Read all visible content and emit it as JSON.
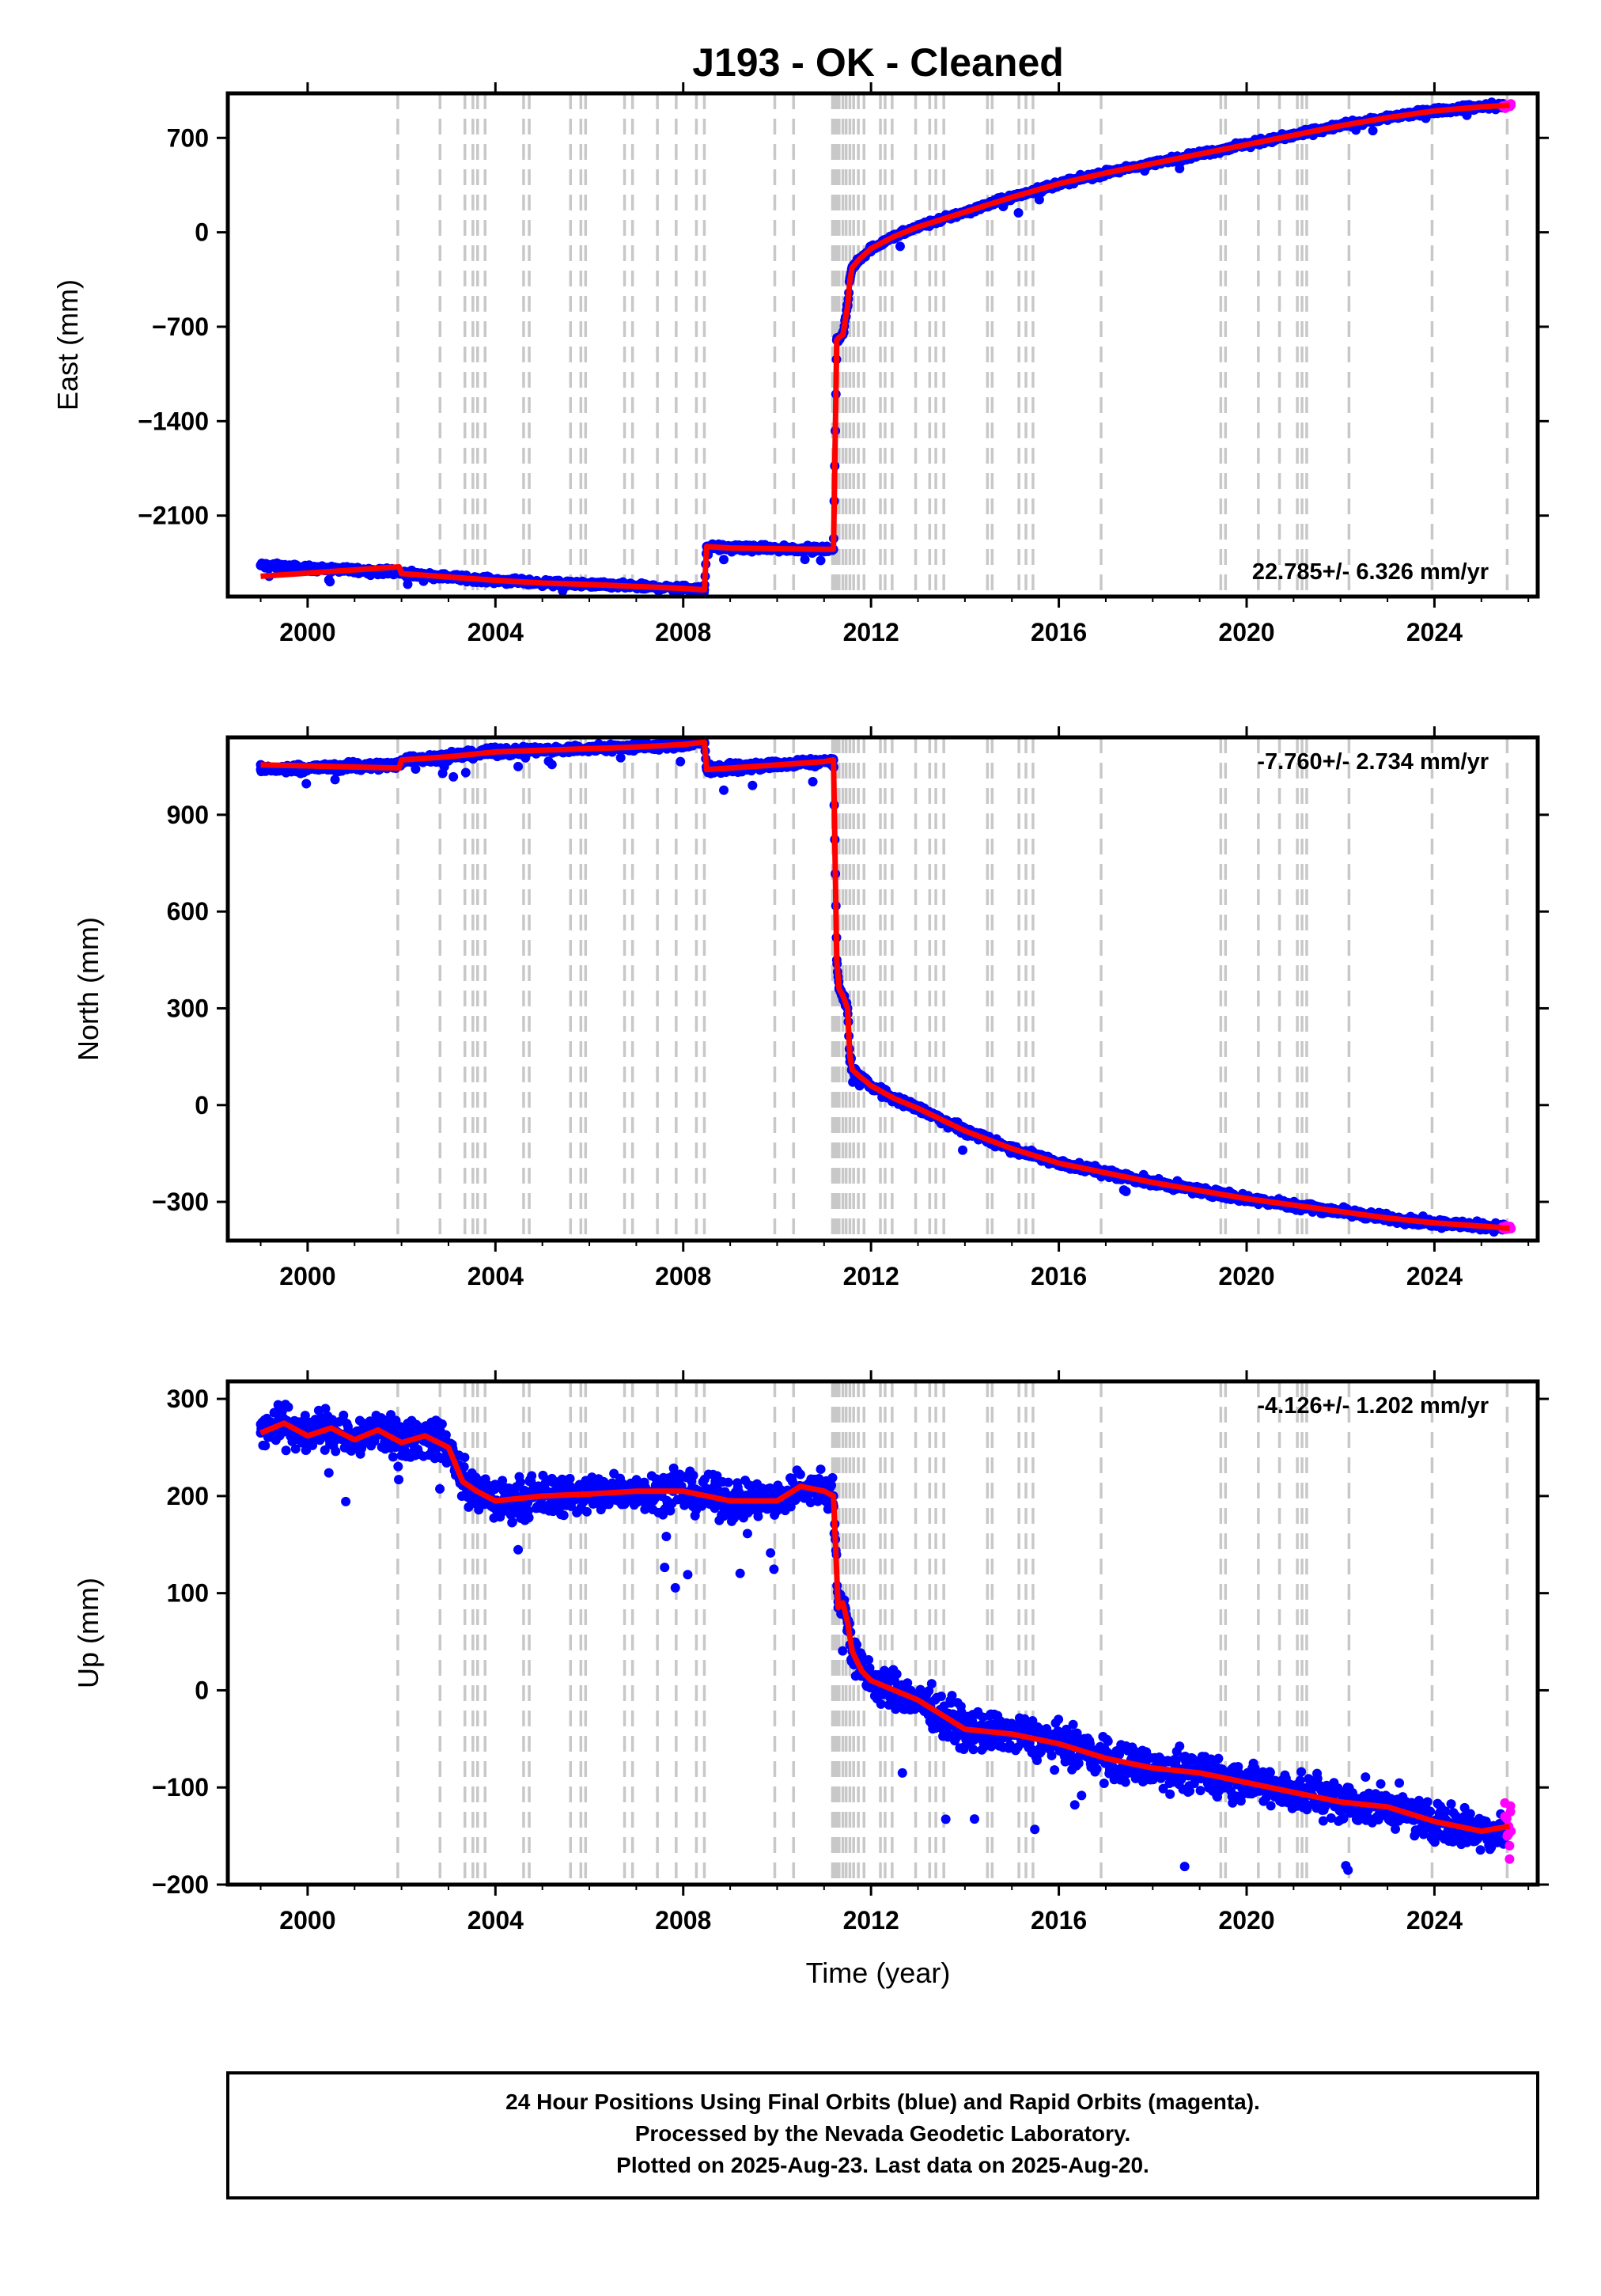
{
  "title": "J193  - OK - Cleaned",
  "colors": {
    "final_orbits": "#0000ff",
    "rapid_orbits": "#ff00ff",
    "model": "#ff0000",
    "event_lines": "#c8c8c8",
    "frame": "#000000"
  },
  "xaxis": {
    "label": "Time (year)",
    "range": [
      1998.3,
      2026.2
    ],
    "ticks": [
      2000,
      2004,
      2008,
      2012,
      2016,
      2020,
      2024
    ],
    "tick_labels": [
      "2000",
      "2004",
      "2008",
      "2012",
      "2016",
      "2020",
      "2024"
    ]
  },
  "event_lines_years": [
    2001.92,
    2002.82,
    2003.35,
    2003.52,
    2003.62,
    2003.78,
    2004.6,
    2004.72,
    2005.6,
    2005.82,
    2005.92,
    2006.75,
    2006.92,
    2007.45,
    2007.85,
    2008.28,
    2008.45,
    2009.95,
    2010.35,
    2011.18,
    2011.22,
    2011.27,
    2011.32,
    2011.4,
    2011.47,
    2011.55,
    2011.63,
    2011.73,
    2011.85,
    2012.2,
    2012.3,
    2012.45,
    2012.95,
    2013.25,
    2013.38,
    2013.55,
    2014.48,
    2014.58,
    2015.15,
    2015.3,
    2015.45,
    2016.9,
    2019.45,
    2019.55,
    2020.25,
    2020.7,
    2021.08,
    2021.18,
    2021.28,
    2022.18,
    2023.95,
    2025.55
  ],
  "footer": {
    "line1": "24 Hour Positions Using Final Orbits (blue) and Rapid Orbits (magenta).",
    "line2": "Processed by the Nevada Geodetic Laboratory.",
    "line3": "Plotted on 2025-Aug-23. Last data on 2025-Aug-20."
  },
  "chart_data": [
    {
      "type": "scatter",
      "panel": "east",
      "ylabel": "East (mm)",
      "ylim": [
        -2700,
        1030
      ],
      "yticks": [
        700,
        0,
        -700,
        -1400,
        -2100
      ],
      "ytick_labels": [
        "700",
        "0",
        "−700",
        "−1400",
        "−2100"
      ],
      "rate_annotation": "22.785+/- 6.326 mm/yr",
      "rate_position": "bottom-right",
      "scatter_noise_mm": 16,
      "series": [
        {
          "name": "Final Orbits (blue)",
          "style": "dots",
          "x": [
            1999.0,
            2000.0,
            2001.0,
            2001.95,
            2002.0,
            2003.0,
            2004.0,
            2005.0,
            2006.0,
            2007.0,
            2008.0,
            2008.45,
            2008.5,
            2009.0,
            2010.0,
            2011.0,
            2011.2,
            2011.27,
            2011.32,
            2011.4,
            2011.5,
            2011.55,
            2011.6,
            2011.75,
            2012.0,
            2012.5,
            2013.0,
            2014.0,
            2015.0,
            2016.0,
            2017.0,
            2018.0,
            2019.0,
            2020.0,
            2021.0,
            2022.0,
            2023.0,
            2024.0,
            2025.0,
            2025.5
          ],
          "y": [
            -2470,
            -2490,
            -2505,
            -2520,
            -2530,
            -2555,
            -2580,
            -2600,
            -2610,
            -2625,
            -2640,
            -2650,
            -2330,
            -2340,
            -2345,
            -2350,
            -2350,
            -800,
            -780,
            -760,
            -550,
            -350,
            -260,
            -200,
            -120,
            -30,
            40,
            150,
            260,
            360,
            440,
            510,
            580,
            650,
            720,
            790,
            850,
            900,
            930,
            940
          ]
        },
        {
          "name": "Rapid Orbits (magenta)",
          "style": "dots",
          "x": [
            2025.45,
            2025.5,
            2025.55,
            2025.6,
            2025.63
          ],
          "y": [
            935,
            938,
            940,
            942,
            943
          ]
        },
        {
          "name": "Model",
          "style": "line",
          "x": [
            1999.0,
            2001.95,
            2002.0,
            2003.0,
            2004.0,
            2005.0,
            2006.0,
            2007.0,
            2008.0,
            2008.45,
            2008.5,
            2009.0,
            2010.0,
            2011.0,
            2011.2,
            2011.27,
            2011.32,
            2011.4,
            2011.5,
            2011.55,
            2011.6,
            2011.75,
            2012.0,
            2012.5,
            2013.0,
            2014.0,
            2015.0,
            2016.0,
            2017.0,
            2018.0,
            2019.0,
            2020.0,
            2021.0,
            2022.0,
            2023.0,
            2024.0,
            2025.0,
            2025.6
          ],
          "y": [
            -2550,
            -2480,
            -2530,
            -2555,
            -2580,
            -2600,
            -2610,
            -2625,
            -2640,
            -2650,
            -2330,
            -2340,
            -2345,
            -2350,
            -2350,
            -800,
            -780,
            -760,
            -550,
            -350,
            -260,
            -200,
            -120,
            -30,
            40,
            150,
            260,
            360,
            440,
            510,
            580,
            650,
            720,
            790,
            850,
            900,
            930,
            942
          ]
        }
      ]
    },
    {
      "type": "scatter",
      "panel": "north",
      "ylabel": "North (mm)",
      "ylim": [
        -420,
        1140
      ],
      "yticks": [
        900,
        600,
        300,
        0,
        -300
      ],
      "ytick_labels": [
        "900",
        "600",
        "300",
        "0",
        "−300"
      ],
      "rate_annotation": "-7.760+/- 2.734 mm/yr",
      "rate_position": "top-right",
      "scatter_noise_mm": 9,
      "series": [
        {
          "name": "Final Orbits (blue)",
          "style": "dots",
          "x": [
            1999.0,
            2000.0,
            2001.0,
            2001.95,
            2002.0,
            2003.0,
            2004.0,
            2005.0,
            2006.0,
            2007.0,
            2008.0,
            2008.45,
            2008.5,
            2009.0,
            2010.0,
            2011.0,
            2011.2,
            2011.27,
            2011.32,
            2011.4,
            2011.5,
            2011.55,
            2011.6,
            2011.75,
            2012.0,
            2012.5,
            2013.0,
            2014.0,
            2015.0,
            2016.0,
            2017.0,
            2018.0,
            2019.0,
            2020.0,
            2021.0,
            2022.0,
            2023.0,
            2024.0,
            2025.0,
            2025.5
          ],
          "y": [
            1040,
            1045,
            1050,
            1055,
            1070,
            1080,
            1095,
            1100,
            1105,
            1110,
            1118,
            1125,
            1040,
            1045,
            1055,
            1065,
            1070,
            450,
            360,
            340,
            300,
            150,
            110,
            90,
            60,
            20,
            -10,
            -80,
            -135,
            -180,
            -210,
            -240,
            -265,
            -290,
            -310,
            -330,
            -350,
            -365,
            -375,
            -380
          ]
        },
        {
          "name": "Rapid Orbits (magenta)",
          "style": "dots",
          "x": [
            2025.45,
            2025.5,
            2025.55,
            2025.6,
            2025.63
          ],
          "y": [
            -378,
            -380,
            -381,
            -382,
            -382
          ]
        },
        {
          "name": "Model",
          "style": "line",
          "x": [
            1999.0,
            2001.95,
            2002.0,
            2003.0,
            2004.0,
            2005.0,
            2006.0,
            2007.0,
            2008.0,
            2008.45,
            2008.5,
            2009.0,
            2010.0,
            2011.0,
            2011.2,
            2011.27,
            2011.32,
            2011.4,
            2011.5,
            2011.55,
            2011.6,
            2011.75,
            2012.0,
            2012.5,
            2013.0,
            2014.0,
            2015.0,
            2016.0,
            2017.0,
            2018.0,
            2019.0,
            2020.0,
            2021.0,
            2022.0,
            2023.0,
            2024.0,
            2025.0,
            2025.6
          ],
          "y": [
            1055,
            1045,
            1070,
            1080,
            1095,
            1100,
            1105,
            1110,
            1118,
            1125,
            1040,
            1045,
            1055,
            1065,
            1070,
            450,
            360,
            340,
            300,
            150,
            110,
            90,
            60,
            20,
            -10,
            -80,
            -135,
            -180,
            -210,
            -240,
            -265,
            -290,
            -310,
            -330,
            -350,
            -365,
            -375,
            -382
          ]
        }
      ]
    },
    {
      "type": "scatter",
      "panel": "up",
      "ylabel": "Up (mm)",
      "ylim": [
        -200,
        318
      ],
      "yticks": [
        300,
        200,
        100,
        0,
        -100,
        -200
      ],
      "ytick_labels": [
        "300",
        "200",
        "100",
        "0",
        "−100",
        "−200"
      ],
      "rate_annotation": "-4.126+/- 1.202 mm/yr",
      "rate_position": "top-right",
      "scatter_noise_mm": 14,
      "series": [
        {
          "name": "Final Orbits (blue)",
          "style": "dots",
          "x": [
            1999.0,
            1999.5,
            2000.0,
            2000.5,
            2001.0,
            2001.5,
            2002.0,
            2002.5,
            2003.0,
            2003.3,
            2003.6,
            2004.0,
            2005.0,
            2006.0,
            2007.0,
            2008.0,
            2009.0,
            2010.0,
            2010.5,
            2011.0,
            2011.2,
            2011.3,
            2011.4,
            2011.5,
            2011.6,
            2011.8,
            2012.0,
            2013.0,
            2014.0,
            2015.0,
            2016.0,
            2017.0,
            2018.0,
            2019.0,
            2020.0,
            2021.0,
            2022.0,
            2023.0,
            2024.0,
            2025.0,
            2025.5
          ],
          "y": [
            265,
            275,
            262,
            270,
            258,
            268,
            255,
            262,
            250,
            215,
            205,
            195,
            200,
            202,
            205,
            205,
            195,
            195,
            210,
            205,
            200,
            85,
            90,
            70,
            40,
            20,
            10,
            -10,
            -40,
            -45,
            -55,
            -70,
            -80,
            -85,
            -95,
            -105,
            -115,
            -120,
            -135,
            -145,
            -148
          ]
        },
        {
          "name": "Rapid Orbits (magenta)",
          "style": "dots",
          "x": [
            2025.5,
            2025.55,
            2025.58,
            2025.6,
            2025.62,
            2025.63
          ],
          "y": [
            -130,
            -150,
            -140,
            -160,
            -125,
            -145
          ]
        },
        {
          "name": "Model",
          "style": "line",
          "x": [
            1999.0,
            1999.5,
            2000.0,
            2000.5,
            2001.0,
            2001.5,
            2002.0,
            2002.5,
            2003.0,
            2003.3,
            2003.6,
            2004.0,
            2005.0,
            2006.0,
            2007.0,
            2008.0,
            2009.0,
            2010.0,
            2010.5,
            2011.0,
            2011.2,
            2011.3,
            2011.4,
            2011.5,
            2011.6,
            2011.8,
            2012.0,
            2013.0,
            2014.0,
            2015.0,
            2016.0,
            2017.0,
            2018.0,
            2019.0,
            2020.0,
            2021.0,
            2022.0,
            2023.0,
            2024.0,
            2025.0,
            2025.6
          ],
          "y": [
            265,
            275,
            262,
            270,
            258,
            268,
            255,
            262,
            250,
            215,
            205,
            195,
            200,
            202,
            205,
            205,
            195,
            195,
            210,
            205,
            200,
            85,
            90,
            70,
            40,
            20,
            10,
            -10,
            -40,
            -45,
            -55,
            -70,
            -80,
            -85,
            -95,
            -105,
            -115,
            -120,
            -135,
            -145,
            -140
          ]
        }
      ]
    }
  ]
}
